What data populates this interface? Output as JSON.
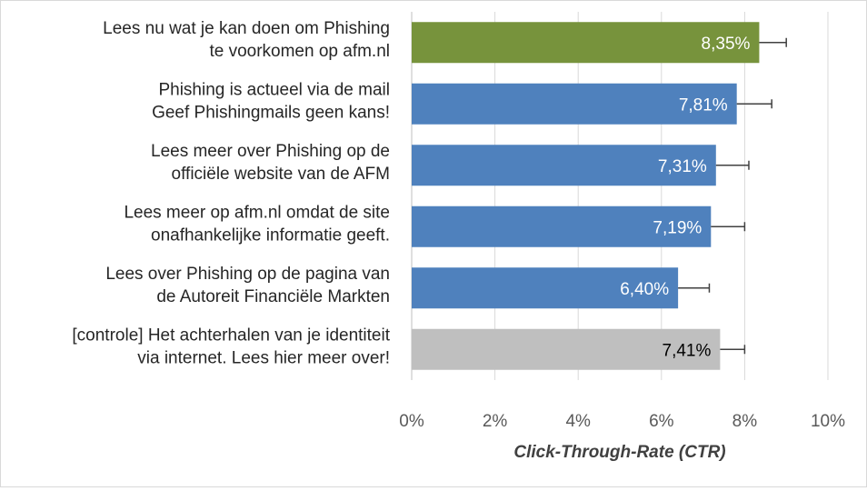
{
  "chart_data": {
    "type": "bar",
    "orientation": "horizontal",
    "categories": [
      [
        "Lees nu wat je kan doen om Phishing",
        "te voorkomen op afm.nl"
      ],
      [
        "Phishing is actueel via de mail",
        "Geef Phishingmails geen kans!"
      ],
      [
        "Lees meer over Phishing op de",
        "officiële website van de AFM"
      ],
      [
        "Lees meer op afm.nl omdat de site",
        "onafhankelijke informatie geeft."
      ],
      [
        "Lees over Phishing op de pagina van",
        "de Autoreit Financiële Markten"
      ],
      [
        "[controle] Het achterhalen van je identiteit",
        "via internet. Lees hier meer over!"
      ]
    ],
    "values": [
      8.35,
      7.81,
      7.31,
      7.19,
      6.4,
      7.41
    ],
    "error_upper": [
      9.0,
      8.65,
      8.1,
      8.0,
      7.15,
      8.0
    ],
    "data_labels": [
      "8,35%",
      "7,81%",
      "7,31%",
      "7,19%",
      "6,40%",
      "7,41%"
    ],
    "bar_colors": [
      "#77933c",
      "#4f81bd",
      "#4f81bd",
      "#4f81bd",
      "#4f81bd",
      "#bfbfbf"
    ],
    "label_colors": [
      "#ffffff",
      "#ffffff",
      "#ffffff",
      "#ffffff",
      "#ffffff",
      "#000000"
    ],
    "xlabel": "Click-Through-Rate (CTR)",
    "xlim": [
      0,
      10
    ],
    "xticks": [
      0,
      2,
      4,
      6,
      8,
      10
    ],
    "xtick_labels": [
      "0%",
      "2%",
      "4%",
      "6%",
      "8%",
      "10%"
    ],
    "grid": true,
    "legend": "none"
  }
}
